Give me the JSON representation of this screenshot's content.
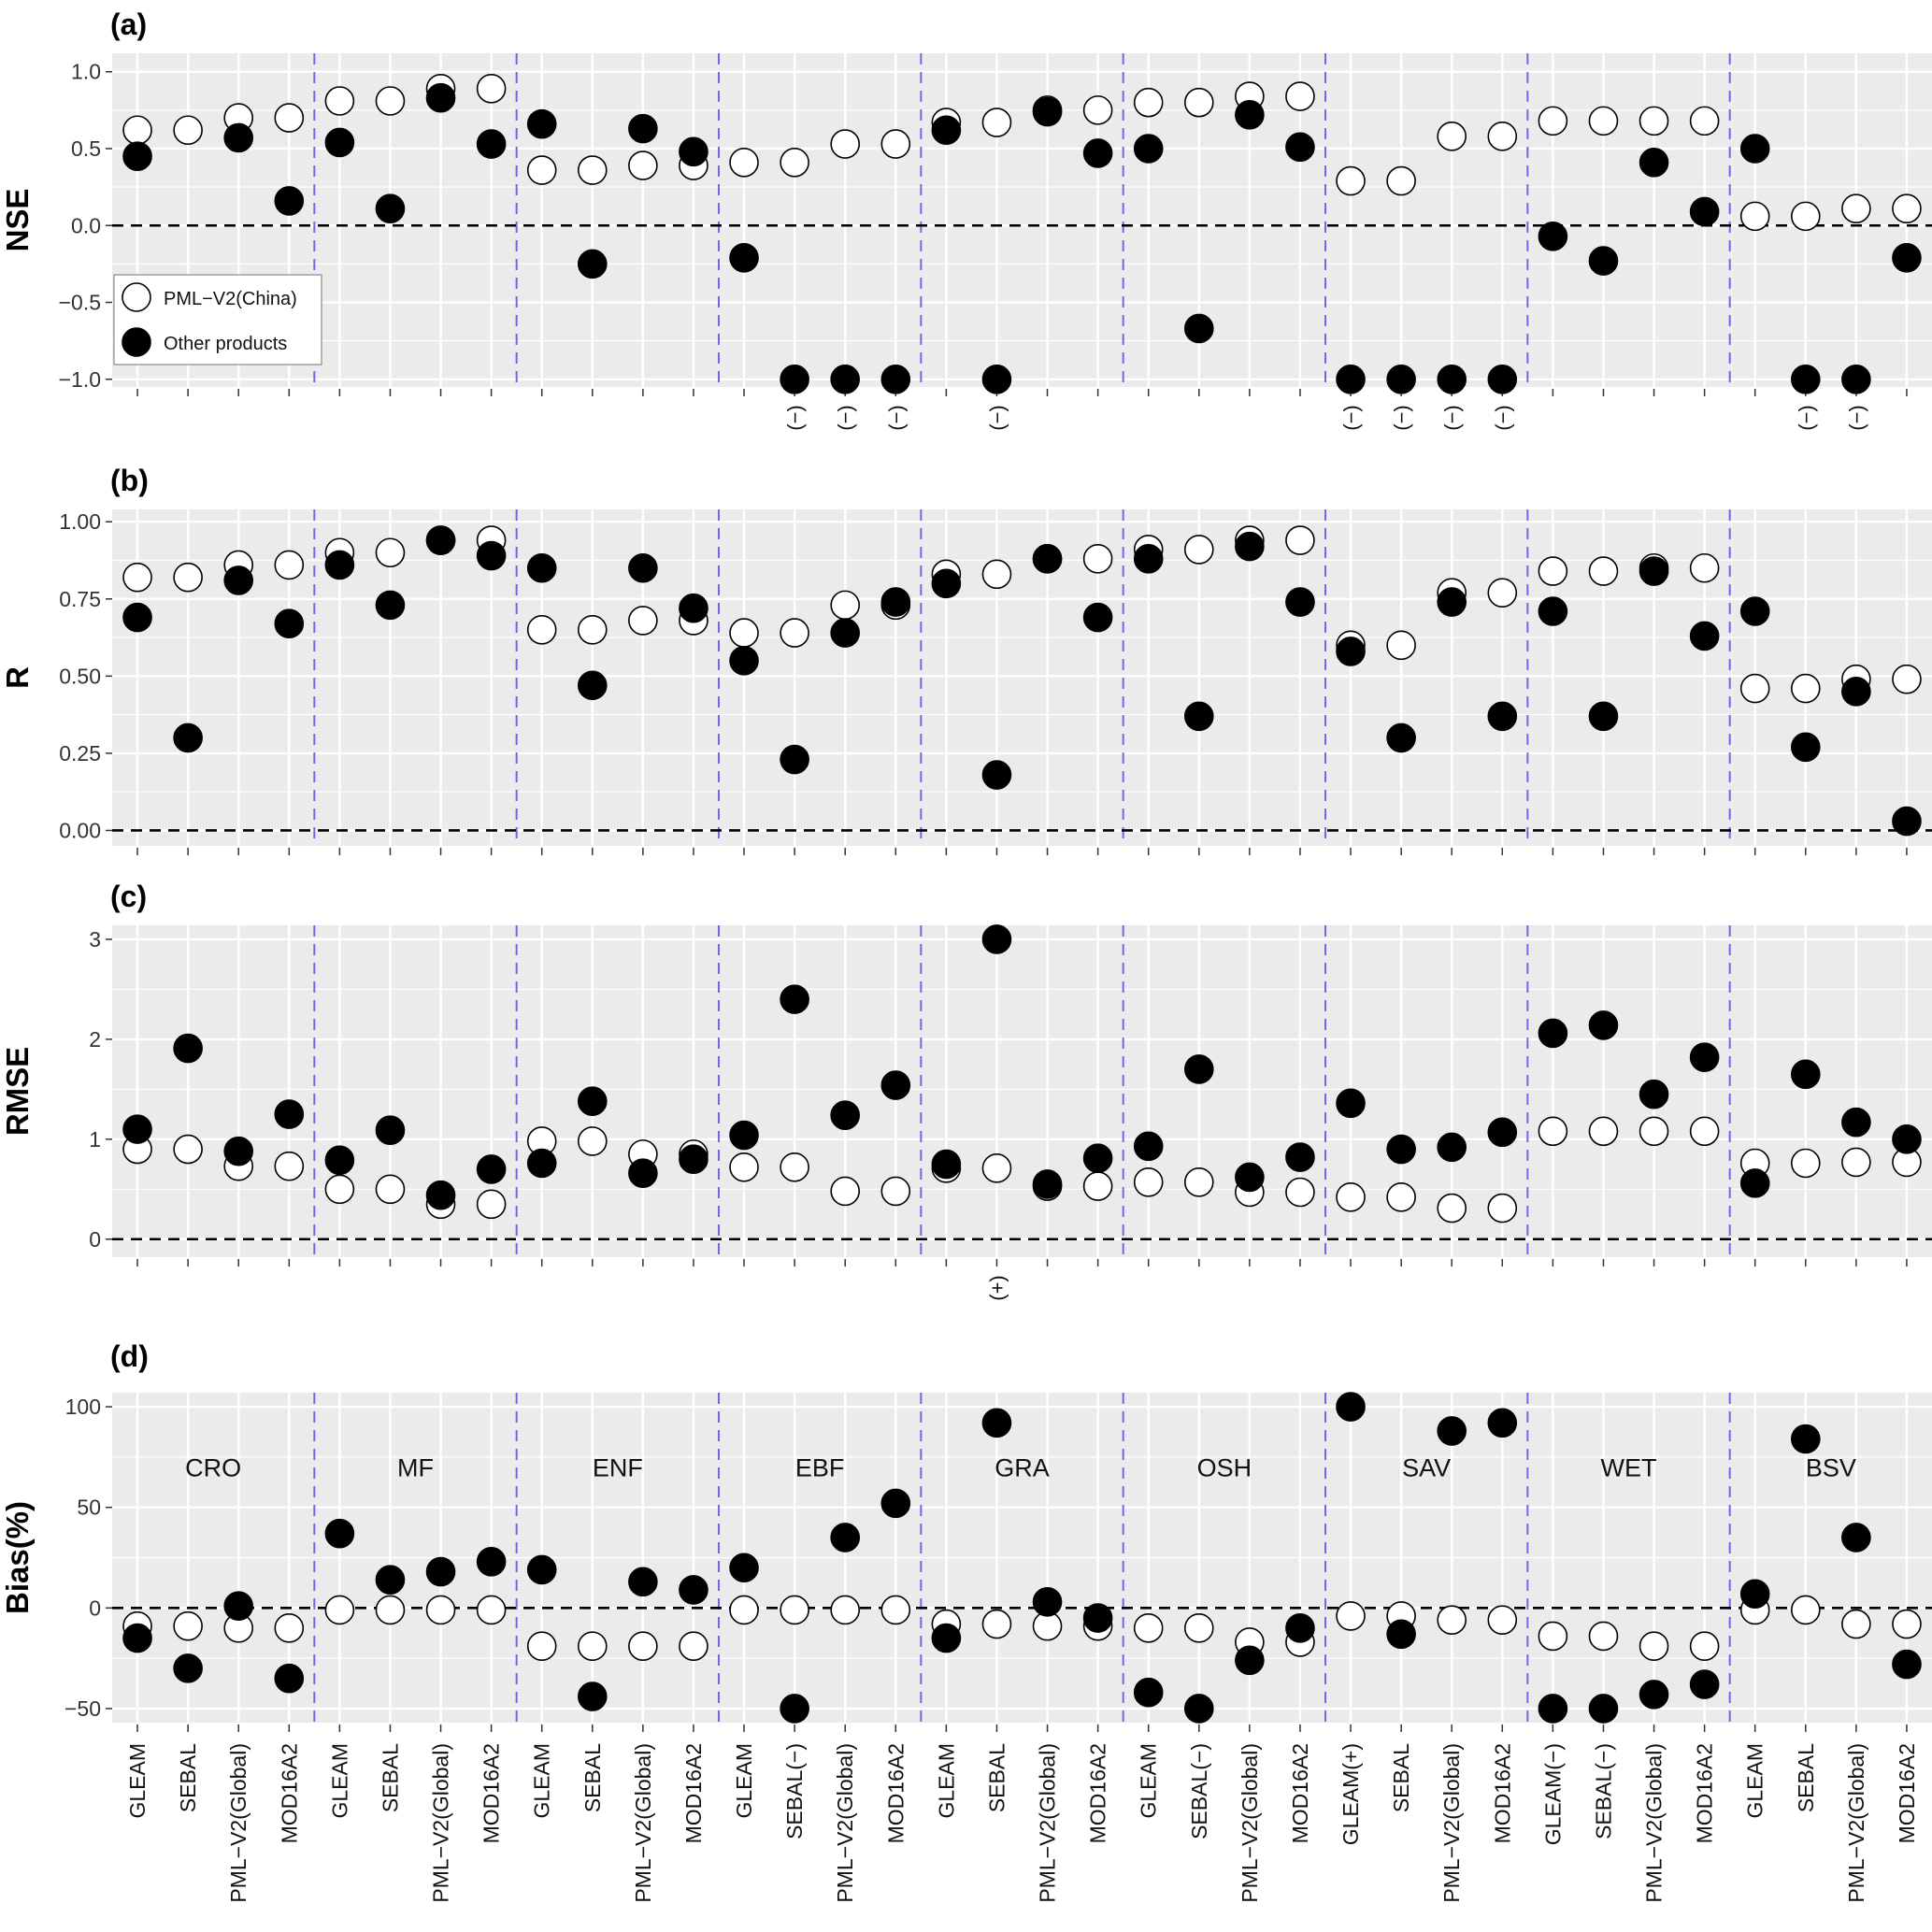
{
  "chart_data": {
    "type": "scatter",
    "groups": [
      "CRO",
      "MF",
      "ENF",
      "EBF",
      "GRA",
      "OSH",
      "SAV",
      "WET",
      "BSV"
    ],
    "x_labels": [
      "GLEAM",
      "SEBAL",
      "PML−V2(Global)",
      "MOD16A2",
      "GLEAM",
      "SEBAL",
      "PML−V2(Global)",
      "MOD16A2",
      "GLEAM",
      "SEBAL",
      "PML−V2(Global)",
      "MOD16A2",
      "GLEAM",
      "SEBAL(−)",
      "PML−V2(Global)",
      "MOD16A2",
      "GLEAM",
      "SEBAL",
      "PML−V2(Global)",
      "MOD16A2",
      "GLEAM",
      "SEBAL(−)",
      "PML−V2(Global)",
      "MOD16A2",
      "GLEAM(+)",
      "SEBAL",
      "PML−V2(Global)",
      "MOD16A2",
      "GLEAM(−)",
      "SEBAL(−)",
      "PML−V2(Global)",
      "MOD16A2",
      "GLEAM",
      "SEBAL",
      "PML−V2(Global)",
      "MOD16A2"
    ],
    "legend": {
      "placement": "inside-bottom-left of panel (a)",
      "entries": [
        "PML−V2(China)",
        "Other products"
      ]
    },
    "grid": true,
    "panels": [
      {
        "tag": "(a)",
        "ylabel": "NSE",
        "ylim": [
          -1.05,
          1.12
        ],
        "yticks": [
          -1.0,
          -0.5,
          0.0,
          0.5,
          1.0
        ],
        "ytick_labels": [
          "−1.0",
          "−0.5",
          "0.0",
          "0.5",
          "1.0"
        ],
        "series": [
          {
            "name": "PML−V2(China)",
            "values": [
              0.62,
              0.62,
              0.7,
              0.7,
              0.81,
              0.81,
              0.89,
              0.89,
              0.36,
              0.36,
              0.39,
              0.39,
              0.41,
              0.41,
              0.53,
              0.53,
              0.67,
              0.67,
              0.75,
              0.75,
              0.8,
              0.8,
              0.84,
              0.84,
              0.29,
              0.29,
              0.58,
              0.58,
              0.68,
              0.68,
              0.68,
              0.68,
              0.06,
              0.06,
              0.11,
              0.11
            ]
          },
          {
            "name": "Other products",
            "values": [
              0.45,
              null,
              0.57,
              0.16,
              0.54,
              0.11,
              0.83,
              0.53,
              0.66,
              -0.25,
              0.63,
              0.48,
              -0.21,
              -1.0,
              -1.0,
              -1.0,
              0.62,
              -1.0,
              0.74,
              0.47,
              0.5,
              -0.67,
              0.72,
              0.51,
              -1.0,
              -1.0,
              -1.0,
              -1.0,
              -0.07,
              -0.23,
              0.41,
              0.09,
              0.5,
              -1.0,
              -1.0,
              -0.21
            ]
          }
        ],
        "annotations": [
          "",
          "",
          "",
          "",
          "",
          "",
          "",
          "",
          "",
          "",
          "",
          "",
          "",
          "(−)",
          "(−)",
          "(−)",
          "",
          "(−)",
          "",
          "",
          "",
          "",
          "",
          "",
          "(−)",
          "(−)",
          "(−)",
          "(−)",
          "",
          "",
          "",
          "",
          "",
          "(−)",
          "(−)",
          ""
        ]
      },
      {
        "tag": "(b)",
        "ylabel": "R",
        "ylim": [
          -0.05,
          1.04
        ],
        "yticks": [
          0.0,
          0.25,
          0.5,
          0.75,
          1.0
        ],
        "ytick_labels": [
          "0.00",
          "0.25",
          "0.50",
          "0.75",
          "1.00"
        ],
        "series": [
          {
            "name": "PML−V2(China)",
            "values": [
              0.82,
              0.82,
              0.86,
              0.86,
              0.9,
              0.9,
              0.94,
              0.94,
              0.65,
              0.65,
              0.68,
              0.68,
              0.64,
              0.64,
              0.73,
              0.73,
              0.83,
              0.83,
              0.88,
              0.88,
              0.91,
              0.91,
              0.94,
              0.94,
              0.6,
              0.6,
              0.77,
              0.77,
              0.84,
              0.84,
              0.85,
              0.85,
              0.46,
              0.46,
              0.49,
              0.49
            ]
          },
          {
            "name": "Other products",
            "values": [
              0.69,
              0.3,
              0.81,
              0.67,
              0.86,
              0.73,
              0.94,
              0.89,
              0.85,
              0.47,
              0.85,
              0.72,
              0.55,
              0.23,
              0.64,
              0.74,
              0.8,
              0.18,
              0.88,
              0.69,
              0.88,
              0.37,
              0.92,
              0.74,
              0.58,
              0.3,
              0.74,
              0.37,
              0.71,
              0.37,
              0.84,
              0.63,
              0.71,
              0.27,
              0.45,
              0.03
            ]
          }
        ],
        "annotations": []
      },
      {
        "tag": "(c)",
        "ylabel": "RMSE",
        "ylim": [
          -0.18,
          3.14
        ],
        "yticks": [
          0,
          1,
          2,
          3
        ],
        "ytick_labels": [
          "0",
          "1",
          "2",
          "3"
        ],
        "series": [
          {
            "name": "PML−V2(China)",
            "values": [
              0.9,
              0.9,
              0.73,
              0.73,
              0.5,
              0.5,
              0.35,
              0.35,
              0.98,
              0.98,
              0.85,
              0.85,
              0.72,
              0.72,
              0.48,
              0.48,
              0.71,
              0.71,
              0.53,
              0.53,
              0.57,
              0.57,
              0.47,
              0.47,
              0.42,
              0.42,
              0.31,
              0.31,
              1.08,
              1.08,
              1.08,
              1.08,
              0.76,
              0.76,
              0.77,
              0.77
            ]
          },
          {
            "name": "Other products",
            "values": [
              1.1,
              1.91,
              0.88,
              1.25,
              0.79,
              1.09,
              0.44,
              0.7,
              0.76,
              1.38,
              0.66,
              0.8,
              1.04,
              2.4,
              1.24,
              1.54,
              0.75,
              3.0,
              0.55,
              0.81,
              0.93,
              1.7,
              0.62,
              0.82,
              1.36,
              0.9,
              0.92,
              1.07,
              2.06,
              2.14,
              1.45,
              1.82,
              0.56,
              1.65,
              1.17,
              1.0
            ]
          }
        ],
        "annotations": [
          "",
          "",
          "",
          "",
          "",
          "",
          "",
          "",
          "",
          "",
          "",
          "",
          "",
          "",
          "",
          "",
          "",
          "(+)",
          "",
          "",
          "",
          "",
          "",
          "",
          "",
          "",
          "",
          "",
          "",
          "",
          "",
          "",
          "",
          "",
          "",
          ""
        ]
      },
      {
        "tag": "(d)",
        "ylabel": "Bias(%)",
        "ylim": [
          -57,
          107
        ],
        "yticks": [
          -50,
          0,
          50,
          100
        ],
        "ytick_labels": [
          "−50",
          "0",
          "50",
          "100"
        ],
        "series": [
          {
            "name": "PML−V2(China)",
            "values": [
              -9,
              -9,
              -10,
              -10,
              -1,
              -1,
              -1,
              -1,
              -19,
              -19,
              -19,
              -19,
              -1,
              -1,
              -1,
              -1,
              -8,
              -8,
              -9,
              -9,
              -10,
              -10,
              -17,
              -17,
              -4,
              -4,
              -6,
              -6,
              -14,
              -14,
              -19,
              -19,
              -1,
              -1,
              -8,
              -8
            ]
          },
          {
            "name": "Other products",
            "values": [
              -15,
              -30,
              1,
              -35,
              37,
              14,
              18,
              23,
              19,
              -44,
              13,
              9,
              20,
              -50,
              35,
              52,
              -15,
              92,
              3,
              -5,
              -42,
              -50,
              -26,
              -10,
              100,
              -13,
              88,
              92,
              -50,
              -50,
              -43,
              -38,
              7,
              84,
              35,
              -28
            ]
          }
        ],
        "group_labels": true,
        "annotations": []
      }
    ]
  }
}
